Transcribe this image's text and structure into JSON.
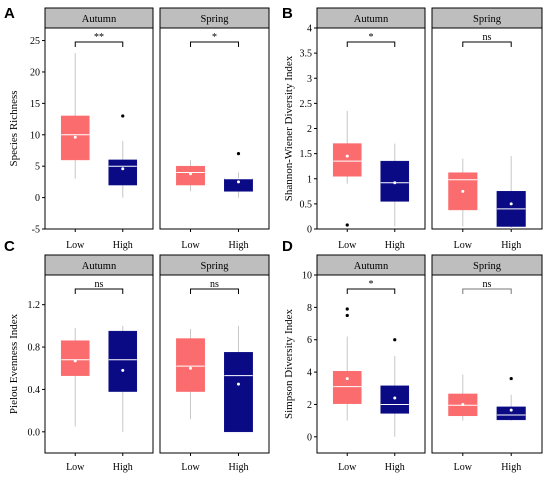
{
  "colors": {
    "low": "#FA6C6E",
    "high": "#0A0A85",
    "strip": "#BEBEBE"
  },
  "chart_data": [
    {
      "type": "box",
      "letter": "A",
      "ylabel": "Species Richness",
      "ylim": [
        -5,
        27
      ],
      "yticks": [
        -5,
        0,
        5,
        10,
        15,
        20,
        25
      ],
      "facets": [
        {
          "label": "Autumn",
          "categories": [
            "Low",
            "High"
          ],
          "boxes": [
            {
              "group": "Low",
              "min": 3,
              "q1": 6,
              "median": 10,
              "q3": 13,
              "max": 23,
              "mean": 9.6,
              "outliers": []
            },
            {
              "group": "High",
              "min": 0,
              "q1": 2,
              "median": 5,
              "q3": 6,
              "max": 9,
              "mean": 4.6,
              "outliers": [
                13
              ]
            }
          ],
          "significance": "**"
        },
        {
          "label": "Spring",
          "categories": [
            "Low",
            "High"
          ],
          "boxes": [
            {
              "group": "Low",
              "min": 1,
              "q1": 2,
              "median": 4,
              "q3": 5,
              "max": 6,
              "mean": 3.8,
              "outliers": []
            },
            {
              "group": "High",
              "min": 0,
              "q1": 1,
              "median": 3,
              "q3": 3,
              "max": 4,
              "mean": 2.5,
              "outliers": [
                7
              ]
            }
          ],
          "significance": "*"
        }
      ]
    },
    {
      "type": "box",
      "letter": "B",
      "ylabel": "Shannon-Wiener Diversity Index",
      "ylim": [
        0,
        4
      ],
      "yticks": [
        0,
        0.5,
        1,
        1.5,
        2,
        2.5,
        3,
        3.5,
        4
      ],
      "facets": [
        {
          "label": "Autumn",
          "categories": [
            "Low",
            "High"
          ],
          "boxes": [
            {
              "group": "Low",
              "min": 0.9,
              "q1": 1.05,
              "median": 1.35,
              "q3": 1.7,
              "max": 2.35,
              "mean": 1.45,
              "outliers": [
                0.08
              ]
            },
            {
              "group": "High",
              "min": 0.05,
              "q1": 0.55,
              "median": 0.92,
              "q3": 1.35,
              "max": 1.7,
              "mean": 0.92,
              "outliers": []
            }
          ],
          "significance": "*"
        },
        {
          "label": "Spring",
          "categories": [
            "Low",
            "High"
          ],
          "boxes": [
            {
              "group": "Low",
              "min": 0.05,
              "q1": 0.38,
              "median": 0.98,
              "q3": 1.12,
              "max": 1.4,
              "mean": 0.75,
              "outliers": []
            },
            {
              "group": "High",
              "min": 0.0,
              "q1": 0.05,
              "median": 0.4,
              "q3": 0.75,
              "max": 1.45,
              "mean": 0.5,
              "outliers": []
            }
          ],
          "significance": "ns"
        }
      ]
    },
    {
      "type": "box",
      "letter": "C",
      "ylabel": "Pielou Evenness Index",
      "ylim": [
        -0.2,
        1.48
      ],
      "yticks": [
        0.0,
        0.4,
        0.8,
        1.2
      ],
      "ytick_labels": [
        "0.0",
        "0.4",
        "0.8",
        "1.2"
      ],
      "facets": [
        {
          "label": "Autumn",
          "categories": [
            "Low",
            "High"
          ],
          "boxes": [
            {
              "group": "Low",
              "min": 0.05,
              "q1": 0.53,
              "median": 0.68,
              "q3": 0.86,
              "max": 0.98,
              "mean": 0.67,
              "outliers": []
            },
            {
              "group": "High",
              "min": 0.0,
              "q1": 0.38,
              "median": 0.68,
              "q3": 0.95,
              "max": 1.0,
              "mean": 0.58,
              "outliers": []
            }
          ],
          "significance": "ns"
        },
        {
          "label": "Spring",
          "categories": [
            "Low",
            "High"
          ],
          "boxes": [
            {
              "group": "Low",
              "min": 0.12,
              "q1": 0.38,
              "median": 0.62,
              "q3": 0.88,
              "max": 0.97,
              "mean": 0.6,
              "outliers": []
            },
            {
              "group": "High",
              "min": 0.0,
              "q1": 0.0,
              "median": 0.53,
              "q3": 0.75,
              "max": 1.0,
              "mean": 0.45,
              "outliers": []
            }
          ],
          "significance": "ns"
        }
      ]
    },
    {
      "type": "box",
      "letter": "D",
      "ylabel": "Simpson Diversity Index",
      "ylim": [
        -1,
        10
      ],
      "yticks": [
        0,
        2,
        4,
        6,
        8,
        10
      ],
      "facets": [
        {
          "label": "Autumn",
          "categories": [
            "Low",
            "High"
          ],
          "boxes": [
            {
              "group": "Low",
              "min": 1,
              "q1": 2.05,
              "median": 3.1,
              "q3": 4.05,
              "max": 6.2,
              "mean": 3.6,
              "outliers": [
                7.5,
                7.9
              ]
            },
            {
              "group": "High",
              "min": 0,
              "q1": 1.45,
              "median": 2.0,
              "q3": 3.15,
              "max": 5.0,
              "mean": 2.4,
              "outliers": [
                6.0
              ]
            }
          ],
          "significance": "*"
        },
        {
          "label": "Spring",
          "categories": [
            "Low",
            "High"
          ],
          "boxes": [
            {
              "group": "Low",
              "min": 1,
              "q1": 1.3,
              "median": 1.95,
              "q3": 2.65,
              "max": 3.85,
              "mean": 2.0,
              "outliers": []
            },
            {
              "group": "High",
              "min": 1,
              "q1": 1.05,
              "median": 1.35,
              "q3": 1.85,
              "max": 2.6,
              "mean": 1.65,
              "outliers": [
                3.6
              ]
            }
          ],
          "significance": "ns",
          "significance_color": "#777777"
        }
      ]
    }
  ]
}
